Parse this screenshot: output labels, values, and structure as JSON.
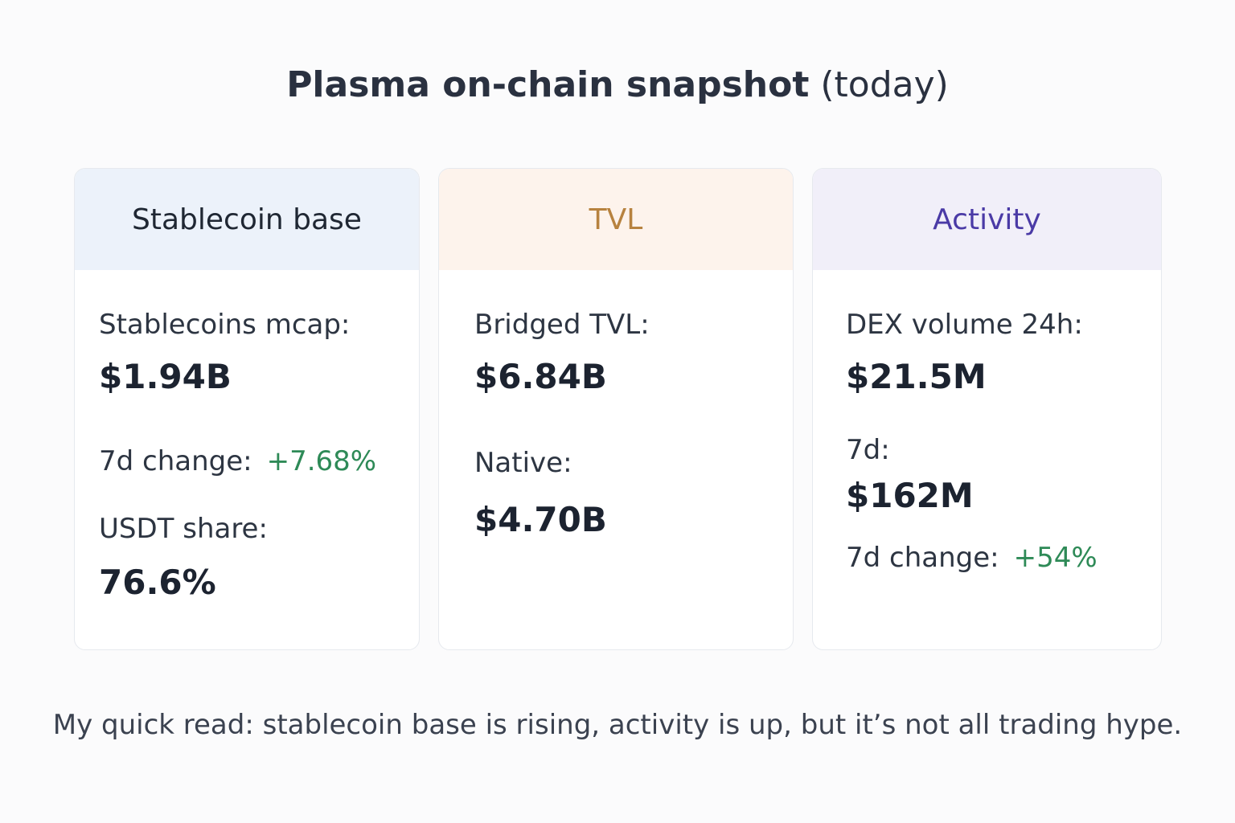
{
  "title": {
    "main": "Plasma on-chain snapshot",
    "suffix": "(today)"
  },
  "cards": [
    {
      "header": "Stablecoin base",
      "accent": "#ecf2fa",
      "rows": {
        "mcap_label": "Stablecoins mcap:",
        "mcap_value": "$1.94B",
        "change_label": "7d change:",
        "change_value": "+7.68%",
        "usdt_label": "USDT share:",
        "usdt_value": "76.6%"
      }
    },
    {
      "header": "TVL",
      "accent": "#fdf3ec",
      "rows": {
        "bridged_label": "Bridged TVL:",
        "bridged_value": "$6.84B",
        "native_label": "Native:",
        "native_value": "$4.70B"
      }
    },
    {
      "header": "Activity",
      "accent": "#f1eff9",
      "rows": {
        "dex_label": "DEX volume 24h:",
        "dex_value": "$21.5M",
        "week_label": "7d:",
        "week_value": "$162M",
        "change_label": "7d change:",
        "change_value": "+54%"
      }
    }
  ],
  "footer": "My quick read: stablecoin base is rising, activity is up, but it’s not all trading hype.",
  "colors": {
    "positive": "#2e8a57",
    "tvl_header": "#b7823f",
    "activity_header": "#4a3aa6"
  }
}
